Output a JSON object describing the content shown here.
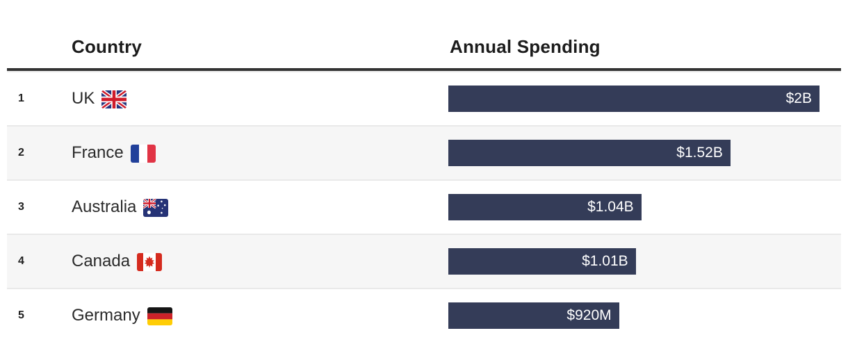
{
  "table": {
    "country_header": "Country",
    "spending_header": "Annual Spending"
  },
  "chart_data": {
    "type": "bar",
    "orientation": "horizontal",
    "title": "",
    "xlabel": "Annual Spending",
    "ylabel": "Country",
    "categories": [
      "UK",
      "France",
      "Australia",
      "Canada",
      "Germany"
    ],
    "values_usd_billions": [
      2.0,
      1.52,
      1.04,
      1.01,
      0.92
    ],
    "value_labels": [
      "$2B",
      "$1.52B",
      "$1.04B",
      "$1.01B",
      "$920M"
    ],
    "xlim": [
      0,
      2.0
    ],
    "grid": false,
    "legend": false,
    "value_label_position": "inside-end",
    "bar_color": "#343c58",
    "value_label_color": "#ffffff"
  },
  "rows": [
    {
      "rank": "1",
      "country": "UK",
      "flag_icon": "uk-flag-icon",
      "value_label": "$2B"
    },
    {
      "rank": "2",
      "country": "France",
      "flag_icon": "france-flag-icon",
      "value_label": "$1.52B"
    },
    {
      "rank": "3",
      "country": "Australia",
      "flag_icon": "australia-flag-icon",
      "value_label": "$1.04B"
    },
    {
      "rank": "4",
      "country": "Canada",
      "flag_icon": "canada-flag-icon",
      "value_label": "$1.01B"
    },
    {
      "rank": "5",
      "country": "Germany",
      "flag_icon": "germany-flag-icon",
      "value_label": "$920M"
    }
  ],
  "colors": {
    "bar": "#343c58",
    "header_rule": "#333333",
    "row_alt_bg": "#f6f6f6",
    "row_border": "#e9e9e9",
    "text": "#262626"
  }
}
